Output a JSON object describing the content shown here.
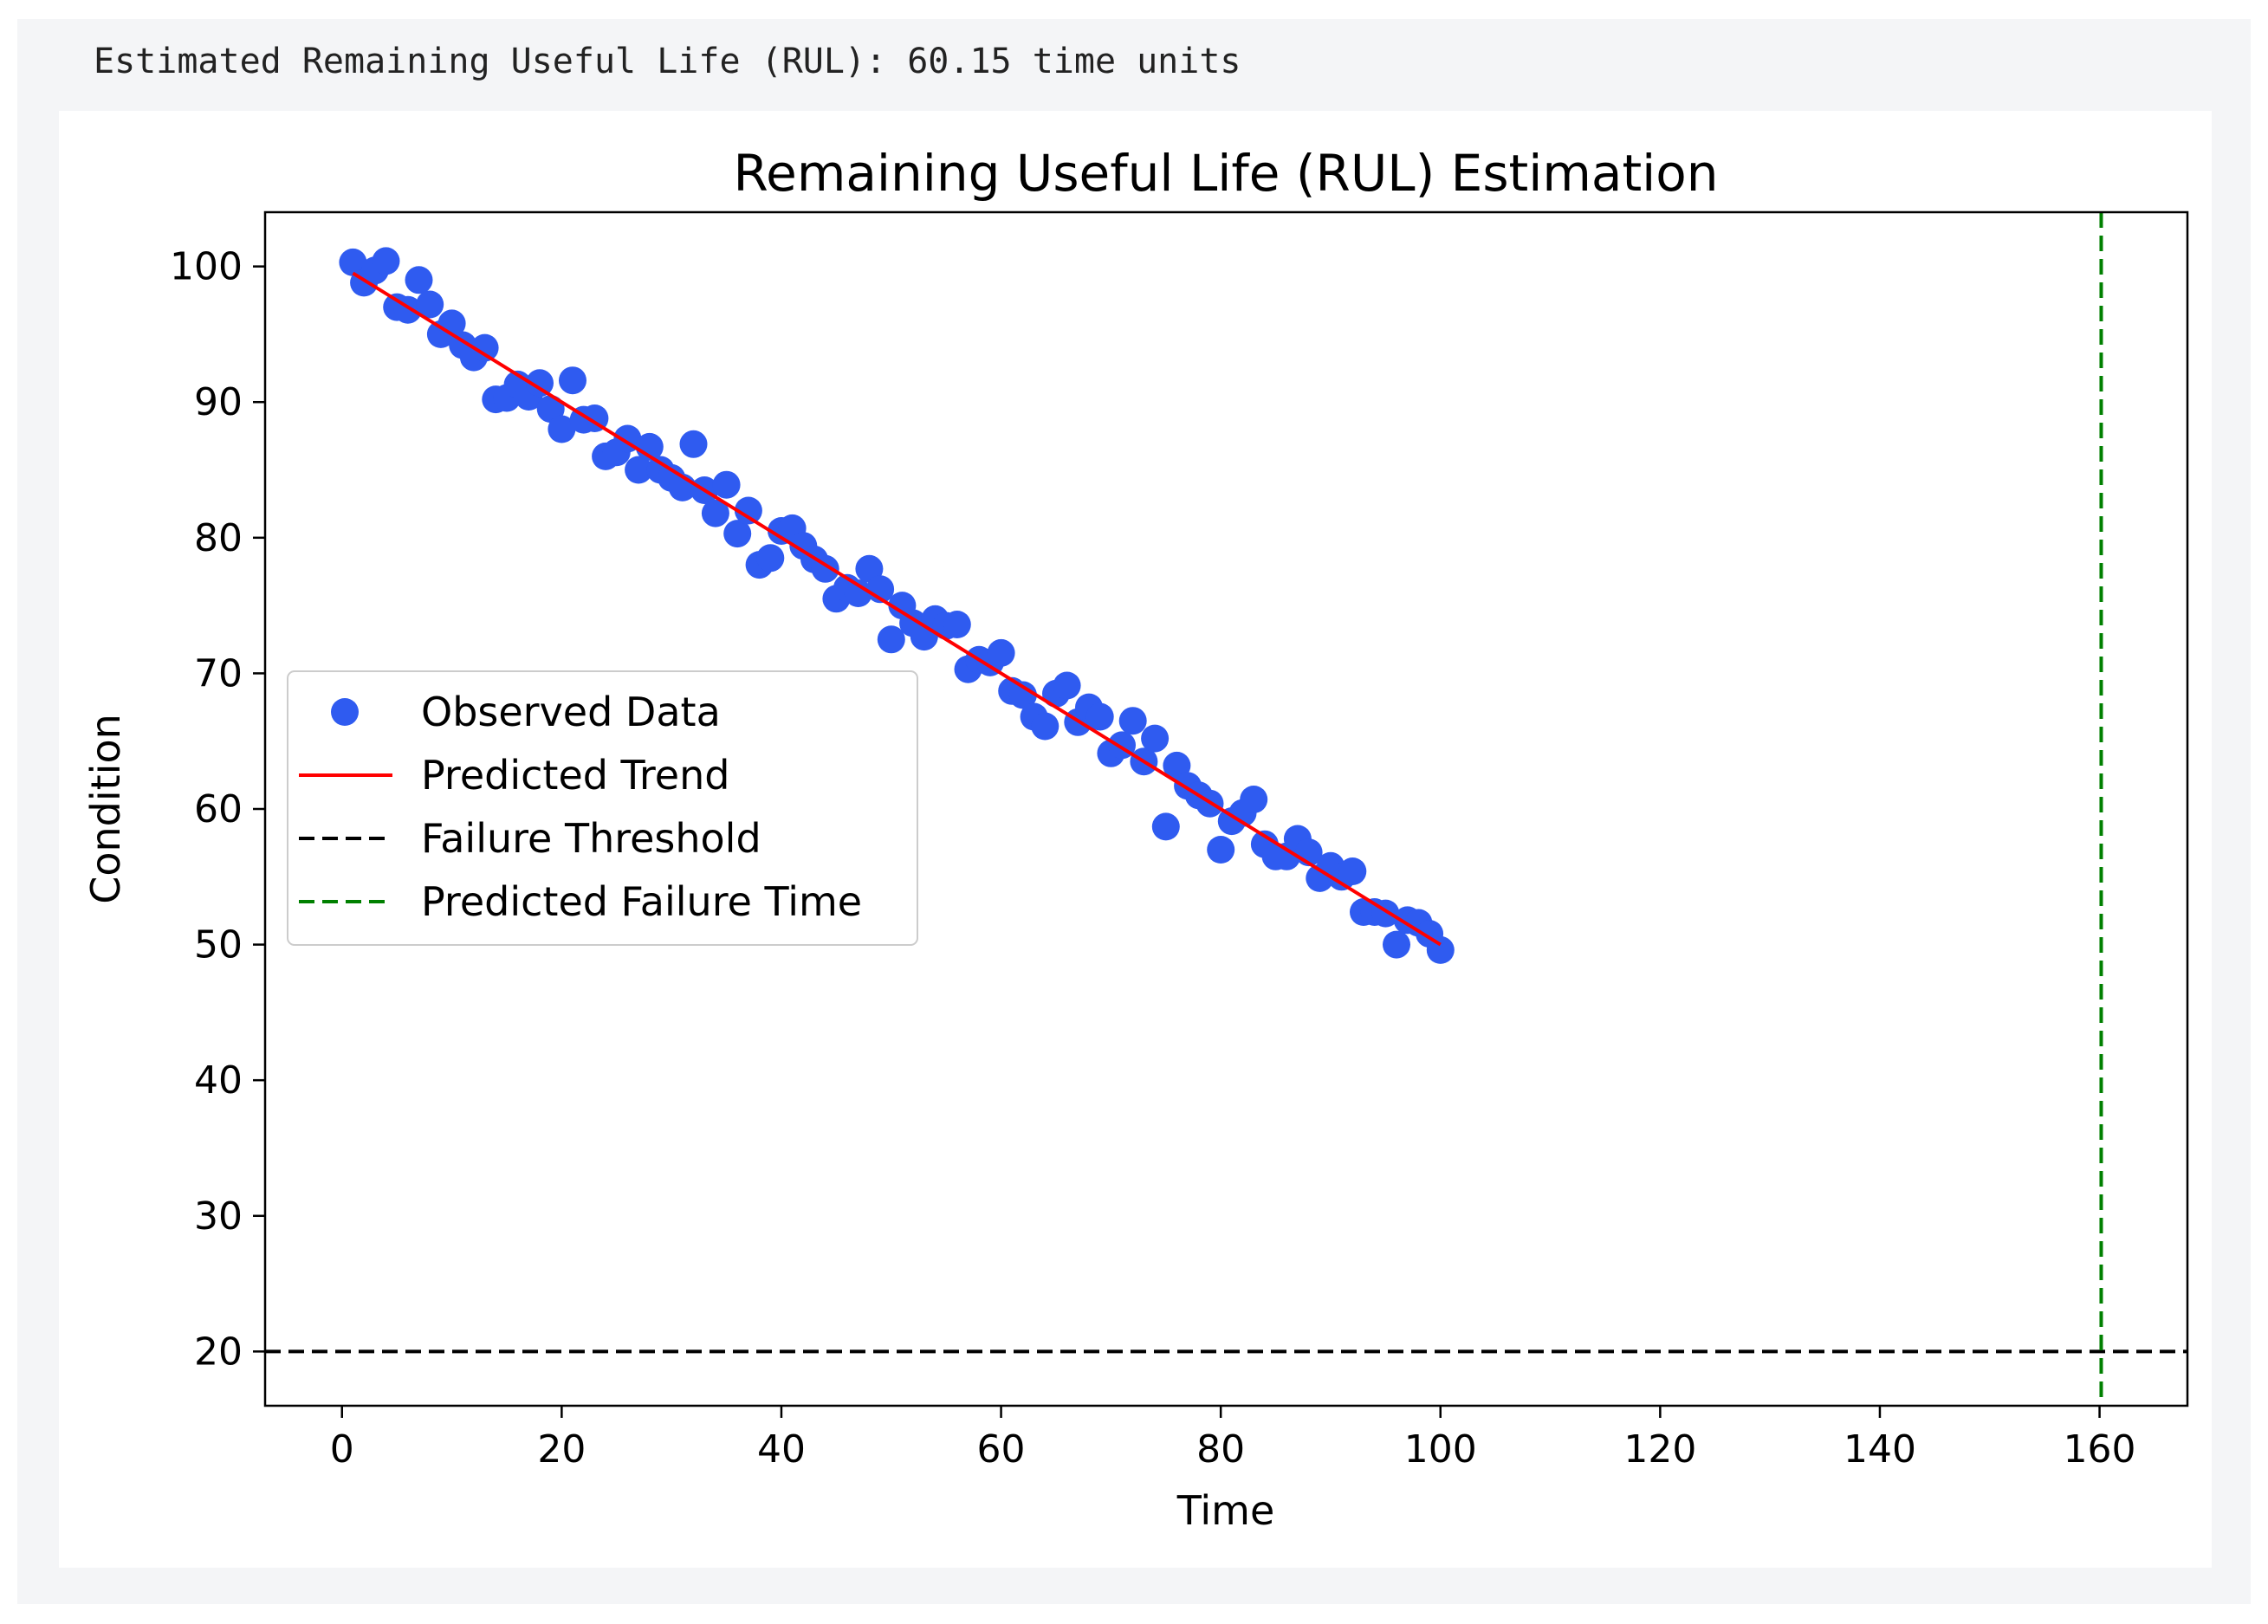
{
  "output_text": "Estimated Remaining Useful Life (RUL): 60.15 time units",
  "colors": {
    "observed": "#2f5bf0",
    "trend": "#ff0000",
    "threshold": "#000000",
    "failure_time": "#008000"
  },
  "chart_data": {
    "type": "scatter",
    "title": "Remaining Useful Life (RUL) Estimation",
    "xlabel": "Time",
    "ylabel": "Condition",
    "xlim": [
      -7,
      168
    ],
    "ylim": [
      16,
      104
    ],
    "xticks": [
      0,
      20,
      40,
      60,
      80,
      100,
      120,
      140,
      160
    ],
    "yticks": [
      20,
      30,
      40,
      50,
      60,
      70,
      80,
      90,
      100
    ],
    "grid": false,
    "legend_position": "center-left",
    "legend": [
      "Observed Data",
      "Predicted Trend",
      "Failure Threshold",
      "Predicted Failure Time"
    ],
    "series": [
      {
        "name": "Observed Data",
        "type": "scatter",
        "x": [
          1,
          2,
          3,
          4,
          5,
          6,
          7,
          8,
          9,
          10,
          11,
          12,
          13,
          14,
          15,
          16,
          17,
          18,
          19,
          20,
          21,
          22,
          23,
          24,
          25,
          26,
          27,
          28,
          29,
          30,
          31,
          32,
          33,
          34,
          35,
          36,
          37,
          38,
          39,
          40,
          41,
          42,
          43,
          44,
          45,
          46,
          47,
          48,
          49,
          50,
          51,
          52,
          53,
          54,
          55,
          56,
          57,
          58,
          59,
          60,
          61,
          62,
          63,
          64,
          65,
          66,
          67,
          68,
          69,
          70,
          71,
          72,
          73,
          74,
          75,
          76,
          77,
          78,
          79,
          80,
          81,
          82,
          83,
          84,
          85,
          86,
          87,
          88,
          89,
          90,
          91,
          92,
          93,
          94,
          95,
          96,
          97,
          98,
          99,
          100
        ],
        "y": [
          100.3,
          98.8,
          99.7,
          100.4,
          97.0,
          96.8,
          99.0,
          97.2,
          95.0,
          95.8,
          94.2,
          93.3,
          94.0,
          90.2,
          90.3,
          91.3,
          90.4,
          91.4,
          89.5,
          88.0,
          91.6,
          88.7,
          88.8,
          86.0,
          86.3,
          87.3,
          85.0,
          86.7,
          85.0,
          84.4,
          83.7,
          86.9,
          83.5,
          81.8,
          83.9,
          80.3,
          82.0,
          78.0,
          78.5,
          80.5,
          80.7,
          79.4,
          78.4,
          77.7,
          75.5,
          76.3,
          75.9,
          77.7,
          76.2,
          72.5,
          75.0,
          73.7,
          72.7,
          74.0,
          73.5,
          73.6,
          70.3,
          71.0,
          70.8,
          71.5,
          68.7,
          68.4,
          66.8,
          66.1,
          68.5,
          69.1,
          66.4,
          67.5,
          66.8,
          64.1,
          64.7,
          66.5,
          63.5,
          65.2,
          58.7,
          63.2,
          61.7,
          61.0,
          60.4,
          57.0,
          59.1,
          59.7,
          60.7,
          57.4,
          56.5,
          56.5,
          57.8,
          56.8,
          54.9,
          55.8,
          55.0,
          55.4,
          52.4,
          52.4,
          52.3,
          50.0,
          51.8,
          51.6,
          50.8,
          49.6
        ]
      },
      {
        "name": "Predicted Trend",
        "type": "line",
        "x": [
          1,
          100
        ],
        "y": [
          99.5,
          50.0
        ]
      },
      {
        "name": "Failure Threshold",
        "type": "hline",
        "y": 20
      },
      {
        "name": "Predicted Failure Time",
        "type": "vline",
        "x": 160.15
      }
    ]
  }
}
